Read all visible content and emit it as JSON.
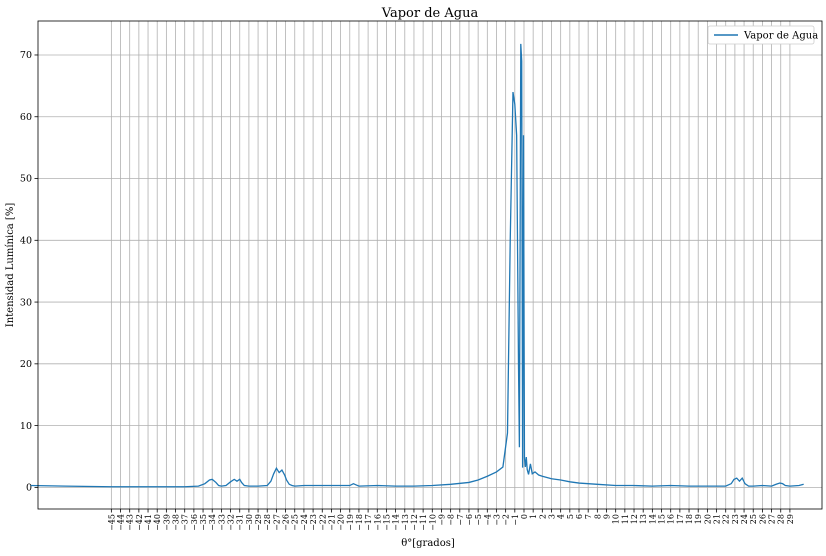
{
  "chart_data": {
    "type": "line",
    "title": "Vapor de Agua",
    "xlabel": "θ°[grados]",
    "ylabel": "Intensidad Lumínica [%]",
    "xlim": [
      -53,
      32.5
    ],
    "ylim": [
      -3.5,
      75.5
    ],
    "grid": true,
    "legend_position": "upper right",
    "line_color": "#1f77b4",
    "yticks": [
      0,
      10,
      20,
      30,
      40,
      50,
      60,
      70
    ],
    "xticks": [
      -45,
      -44,
      -43,
      -42,
      -41,
      -40,
      -39,
      -38,
      -37,
      -36,
      -35,
      -34,
      -33,
      -32,
      -31,
      -30,
      -29,
      -28,
      -27,
      -26,
      -25,
      -24,
      -23,
      -22,
      -21,
      -20,
      -19,
      -18,
      -17,
      -16,
      -15,
      -14,
      -13,
      -12,
      -11,
      -10,
      -9,
      -8,
      -7,
      -6,
      -5,
      -4,
      -3,
      -2,
      -1,
      0,
      1,
      2,
      3,
      4,
      5,
      6,
      7,
      8,
      9,
      10,
      11,
      12,
      13,
      14,
      15,
      16,
      17,
      18,
      19,
      20,
      21,
      22,
      23,
      24,
      25,
      26,
      27,
      28,
      29
    ],
    "series": [
      {
        "name": "Vapor de Agua",
        "x": [
          -53.8,
          -50,
          -45,
          -40,
          -37,
          -35.5,
          -34.8,
          -34.3,
          -34,
          -33.6,
          -33.3,
          -33,
          -32.5,
          -32,
          -31.6,
          -31.3,
          -31,
          -30.8,
          -30.5,
          -30,
          -29,
          -28,
          -27.6,
          -27.3,
          -27,
          -26.7,
          -26.4,
          -26.1,
          -25.9,
          -25.6,
          -25.3,
          -25,
          -24,
          -22,
          -20,
          -19,
          -18.6,
          -18.3,
          -18,
          -16,
          -14,
          -12,
          -10,
          -8,
          -6,
          -5,
          -4,
          -3,
          -2.3,
          -1.8,
          -1.5,
          -1.2,
          -1.0,
          -0.8,
          -0.6,
          -0.5,
          -0.35,
          -0.25,
          -0.15,
          -0.05,
          0.05,
          0.15,
          0.25,
          0.35,
          0.5,
          0.7,
          0.9,
          1.2,
          1.6,
          2,
          3,
          4,
          5,
          6,
          8,
          10,
          12,
          14,
          16,
          18,
          20,
          22,
          22.6,
          22.9,
          23.2,
          23.5,
          23.8,
          24.1,
          24.5,
          25,
          26,
          27,
          27.5,
          27.9,
          28.2,
          28.5,
          29,
          30,
          30.5
        ],
        "y": [
          0.3,
          0.2,
          0.1,
          0.1,
          0.1,
          0.2,
          0.6,
          1.2,
          1.3,
          0.8,
          0.3,
          0.2,
          0.3,
          0.9,
          1.3,
          1.0,
          1.3,
          0.8,
          0.3,
          0.2,
          0.2,
          0.3,
          1.0,
          2.2,
          3.1,
          2.4,
          2.8,
          2.0,
          1.2,
          0.5,
          0.3,
          0.2,
          0.3,
          0.3,
          0.3,
          0.3,
          0.6,
          0.4,
          0.2,
          0.3,
          0.2,
          0.2,
          0.3,
          0.5,
          0.8,
          1.2,
          1.8,
          2.5,
          3.3,
          8.8,
          40,
          64,
          62,
          57,
          20,
          6.5,
          71.8,
          69,
          3.2,
          57,
          4.8,
          3.3,
          4.9,
          2.9,
          2.1,
          3.8,
          2.2,
          2.5,
          2.0,
          1.8,
          1.4,
          1.2,
          0.9,
          0.7,
          0.5,
          0.3,
          0.3,
          0.2,
          0.3,
          0.2,
          0.2,
          0.2,
          0.6,
          1.3,
          1.5,
          1.0,
          1.5,
          0.6,
          0.2,
          0.2,
          0.3,
          0.2,
          0.5,
          0.7,
          0.6,
          0.3,
          0.2,
          0.3,
          0.5
        ]
      }
    ]
  }
}
